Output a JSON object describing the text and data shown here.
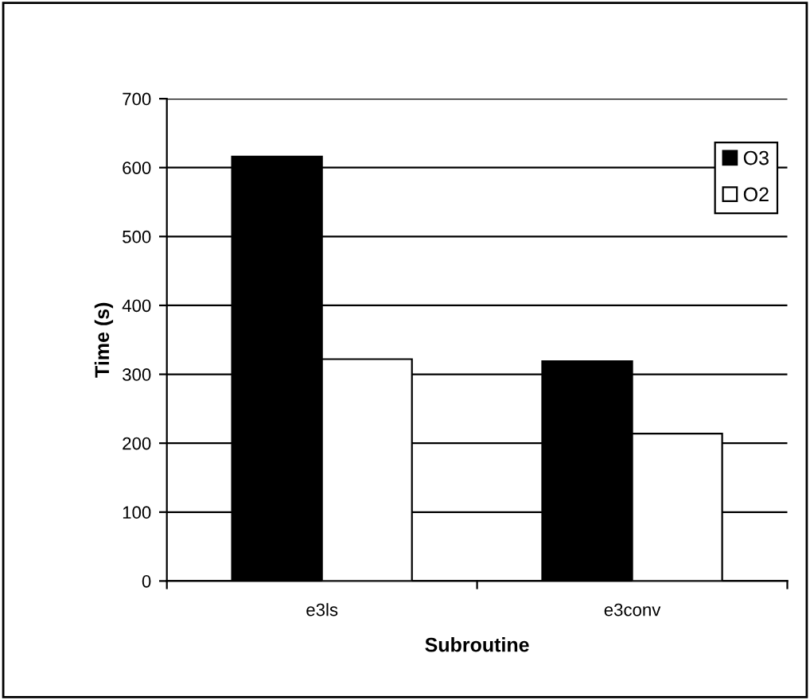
{
  "chart_data": {
    "type": "bar",
    "xlabel": "Subroutine",
    "ylabel": "Time (s)",
    "categories": [
      "e3ls",
      "e3conv"
    ],
    "series": [
      {
        "name": "O3",
        "color": "#000000",
        "values": [
          616,
          319
        ]
      },
      {
        "name": "O2",
        "color": "#ffffff",
        "values": [
          322,
          214
        ]
      }
    ],
    "ylim": [
      0,
      700
    ],
    "yticks": [
      0,
      100,
      200,
      300,
      400,
      500,
      600,
      700
    ],
    "grid": "y",
    "legend": "top right"
  }
}
